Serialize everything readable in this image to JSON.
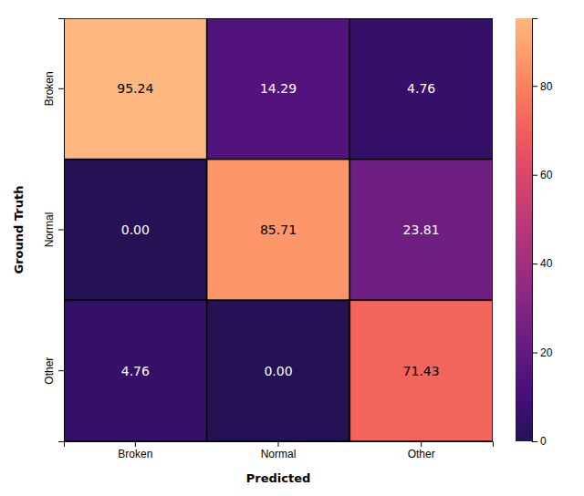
{
  "chart_data": {
    "type": "heatmap",
    "xlabel": "Predicted",
    "ylabel": "Ground Truth",
    "categories": [
      "Broken",
      "Normal",
      "Other"
    ],
    "y_categories": [
      "Broken",
      "Normal",
      "Other"
    ],
    "matrix": [
      [
        95.24,
        14.29,
        4.76
      ],
      [
        0.0,
        85.71,
        23.81
      ],
      [
        4.76,
        0.0,
        71.43
      ]
    ],
    "value_labels": [
      [
        "95.24",
        "14.29",
        "4.76"
      ],
      [
        "0.00",
        "85.71",
        "23.81"
      ],
      [
        "4.76",
        "0.00",
        "71.43"
      ]
    ],
    "data_labels": true,
    "colorbar_range": [
      0,
      95.24
    ],
    "colorbar_ticks": [
      0,
      20,
      40,
      60,
      80
    ]
  }
}
